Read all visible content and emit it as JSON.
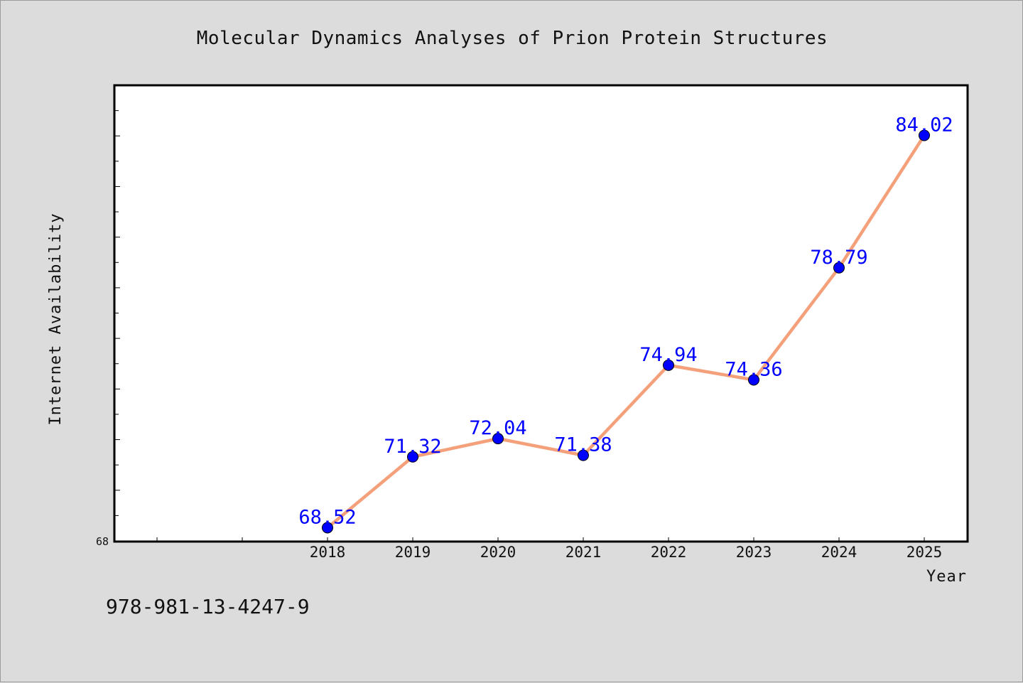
{
  "chart_data": {
    "type": "line",
    "title": "Molecular Dynamics Analyses of Prion Protein Structures",
    "xlabel": "Year",
    "ylabel": "Internet Availability",
    "categories": [
      "2018",
      "2019",
      "2020",
      "2021",
      "2022",
      "2023",
      "2024",
      "2025"
    ],
    "series": [
      {
        "values": [
          68.52,
          71.32,
          72.04,
          71.38,
          74.94,
          74.36,
          78.79,
          84.02
        ],
        "labels": [
          "68.52",
          "71.32",
          "72.04",
          "71.38",
          "74.94",
          "74.36",
          "78.79",
          "84.02"
        ]
      }
    ],
    "x_range": [
      2015.5,
      2025.5
    ],
    "ylim": [
      68,
      86
    ],
    "y_tick_labels": [
      "68"
    ],
    "line_color": "#f4a07a",
    "marker_color": "#0000ff",
    "label_color": "#0000ff",
    "grid": false,
    "legend": "none"
  },
  "footer": {
    "isbn": "978-981-13-4247-9"
  }
}
